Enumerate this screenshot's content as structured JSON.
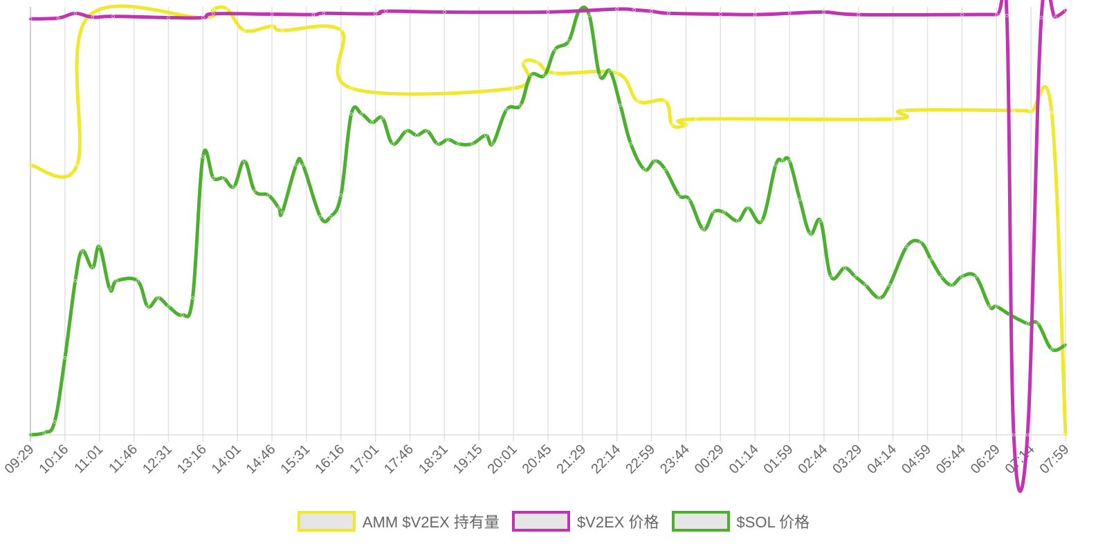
{
  "chart_data": {
    "type": "line",
    "title": "",
    "xlabel": "",
    "ylabel": "",
    "grid": "vertical",
    "legend_position": "bottom",
    "x_tick_labels": [
      "09:29",
      "10:16",
      "11:01",
      "11:46",
      "12:31",
      "13:16",
      "14:01",
      "14:46",
      "15:31",
      "16:16",
      "17:01",
      "17:46",
      "18:31",
      "19:15",
      "20:01",
      "20:45",
      "21:29",
      "22:14",
      "22:59",
      "23:44",
      "00:29",
      "01:14",
      "01:59",
      "02:44",
      "03:29",
      "04:14",
      "04:59",
      "05:44",
      "06:29",
      "07:14",
      "07:59"
    ],
    "series": [
      {
        "name": "AMM $V2EX 持有量",
        "color": "#f0e92b",
        "normalized": true,
        "values": [
          [
            0,
            0.63
          ],
          [
            1.35,
            0.63
          ],
          [
            1.65,
            0.975
          ],
          [
            5,
            0.975
          ],
          [
            5.3,
            0.995
          ],
          [
            5.7,
            0.995
          ],
          [
            6.2,
            0.945
          ],
          [
            7,
            0.955
          ],
          [
            7.3,
            0.945
          ],
          [
            9,
            0.945
          ],
          [
            9.3,
            0.81
          ],
          [
            14,
            0.81
          ],
          [
            14.3,
            0.87
          ],
          [
            14.7,
            0.87
          ],
          [
            15.2,
            0.845
          ],
          [
            17,
            0.845
          ],
          [
            17.6,
            0.78
          ],
          [
            18.4,
            0.78
          ],
          [
            18.6,
            0.724
          ],
          [
            19,
            0.724
          ],
          [
            19.3,
            0.738
          ],
          [
            25,
            0.738
          ],
          [
            25.3,
            0.758
          ],
          [
            28.5,
            0.758
          ],
          [
            29,
            0.755
          ],
          [
            29.6,
            0.753
          ],
          [
            30,
            0.0
          ]
        ]
      },
      {
        "name": "$V2EX 价格",
        "color": "#c133b1",
        "normalized": true,
        "values": [
          [
            0,
            0.972
          ],
          [
            0.8,
            0.974
          ],
          [
            1.3,
            0.985
          ],
          [
            1.8,
            0.976
          ],
          [
            2.4,
            0.978
          ],
          [
            4,
            0.975
          ],
          [
            5,
            0.975
          ],
          [
            5.3,
            0.984
          ],
          [
            7,
            0.983
          ],
          [
            8.2,
            0.982
          ],
          [
            8.5,
            0.985
          ],
          [
            10,
            0.984
          ],
          [
            10.3,
            0.99
          ],
          [
            12,
            0.988
          ],
          [
            15,
            0.988
          ],
          [
            17,
            0.995
          ],
          [
            17.5,
            0.993
          ],
          [
            18,
            0.99
          ],
          [
            18.5,
            0.985
          ],
          [
            20,
            0.983
          ],
          [
            21,
            0.982
          ],
          [
            22,
            0.985
          ],
          [
            23,
            0.988
          ],
          [
            24,
            0.982
          ],
          [
            27,
            0.982
          ],
          [
            28,
            0.982
          ],
          [
            28.3,
            0.98
          ],
          [
            28.5,
            0.0
          ],
          [
            28.9,
            0.0
          ],
          [
            29.3,
            0.975
          ],
          [
            29.7,
            0.976
          ],
          [
            30,
            0.992
          ]
        ]
      },
      {
        "name": "$SOL 价格",
        "color": "#4cb02e",
        "normalized": true,
        "values": [
          [
            0,
            0.0
          ],
          [
            0.4,
            0.005
          ],
          [
            0.7,
            0.03
          ],
          [
            1.0,
            0.18
          ],
          [
            1.3,
            0.36
          ],
          [
            1.5,
            0.43
          ],
          [
            1.8,
            0.39
          ],
          [
            2.0,
            0.44
          ],
          [
            2.3,
            0.34
          ],
          [
            2.5,
            0.36
          ],
          [
            3.1,
            0.36
          ],
          [
            3.4,
            0.3
          ],
          [
            3.7,
            0.32
          ],
          [
            4.0,
            0.3
          ],
          [
            4.4,
            0.28
          ],
          [
            4.7,
            0.32
          ],
          [
            5.0,
            0.65
          ],
          [
            5.3,
            0.6
          ],
          [
            5.6,
            0.6
          ],
          [
            5.9,
            0.58
          ],
          [
            6.2,
            0.64
          ],
          [
            6.5,
            0.57
          ],
          [
            6.9,
            0.56
          ],
          [
            7.2,
            0.53
          ],
          [
            7.3,
            0.52
          ],
          [
            7.7,
            0.63
          ],
          [
            7.9,
            0.63
          ],
          [
            8.4,
            0.51
          ],
          [
            8.7,
            0.51
          ],
          [
            9.0,
            0.56
          ],
          [
            9.3,
            0.75
          ],
          [
            9.6,
            0.75
          ],
          [
            9.9,
            0.73
          ],
          [
            10.2,
            0.74
          ],
          [
            10.5,
            0.68
          ],
          [
            10.9,
            0.71
          ],
          [
            11.2,
            0.7
          ],
          [
            11.5,
            0.71
          ],
          [
            11.8,
            0.68
          ],
          [
            12.1,
            0.69
          ],
          [
            12.4,
            0.68
          ],
          [
            12.8,
            0.68
          ],
          [
            13.2,
            0.7
          ],
          [
            13.4,
            0.68
          ],
          [
            13.8,
            0.76
          ],
          [
            14.2,
            0.77
          ],
          [
            14.5,
            0.84
          ],
          [
            14.9,
            0.84
          ],
          [
            15.2,
            0.9
          ],
          [
            15.6,
            0.92
          ],
          [
            15.9,
            0.99
          ],
          [
            16.2,
            0.98
          ],
          [
            16.5,
            0.84
          ],
          [
            16.8,
            0.85
          ],
          [
            17.1,
            0.77
          ],
          [
            17.4,
            0.68
          ],
          [
            17.8,
            0.62
          ],
          [
            18.1,
            0.64
          ],
          [
            18.4,
            0.62
          ],
          [
            18.8,
            0.56
          ],
          [
            19.1,
            0.55
          ],
          [
            19.5,
            0.48
          ],
          [
            19.8,
            0.52
          ],
          [
            20.1,
            0.52
          ],
          [
            20.5,
            0.5
          ],
          [
            20.8,
            0.53
          ],
          [
            21.2,
            0.5
          ],
          [
            21.6,
            0.63
          ],
          [
            21.8,
            0.64
          ],
          [
            22.0,
            0.64
          ],
          [
            22.3,
            0.55
          ],
          [
            22.6,
            0.47
          ],
          [
            22.9,
            0.5
          ],
          [
            23.2,
            0.37
          ],
          [
            23.6,
            0.39
          ],
          [
            23.9,
            0.37
          ],
          [
            24.2,
            0.35
          ],
          [
            24.6,
            0.32
          ],
          [
            24.9,
            0.35
          ],
          [
            25.4,
            0.44
          ],
          [
            25.8,
            0.45
          ],
          [
            26.1,
            0.41
          ],
          [
            26.4,
            0.37
          ],
          [
            26.7,
            0.35
          ],
          [
            27.0,
            0.37
          ],
          [
            27.4,
            0.37
          ],
          [
            27.8,
            0.3
          ],
          [
            28.0,
            0.3
          ],
          [
            28.4,
            0.28
          ],
          [
            28.9,
            0.26
          ],
          [
            29.2,
            0.26
          ],
          [
            29.6,
            0.2
          ],
          [
            30,
            0.21
          ]
        ]
      }
    ]
  }
}
